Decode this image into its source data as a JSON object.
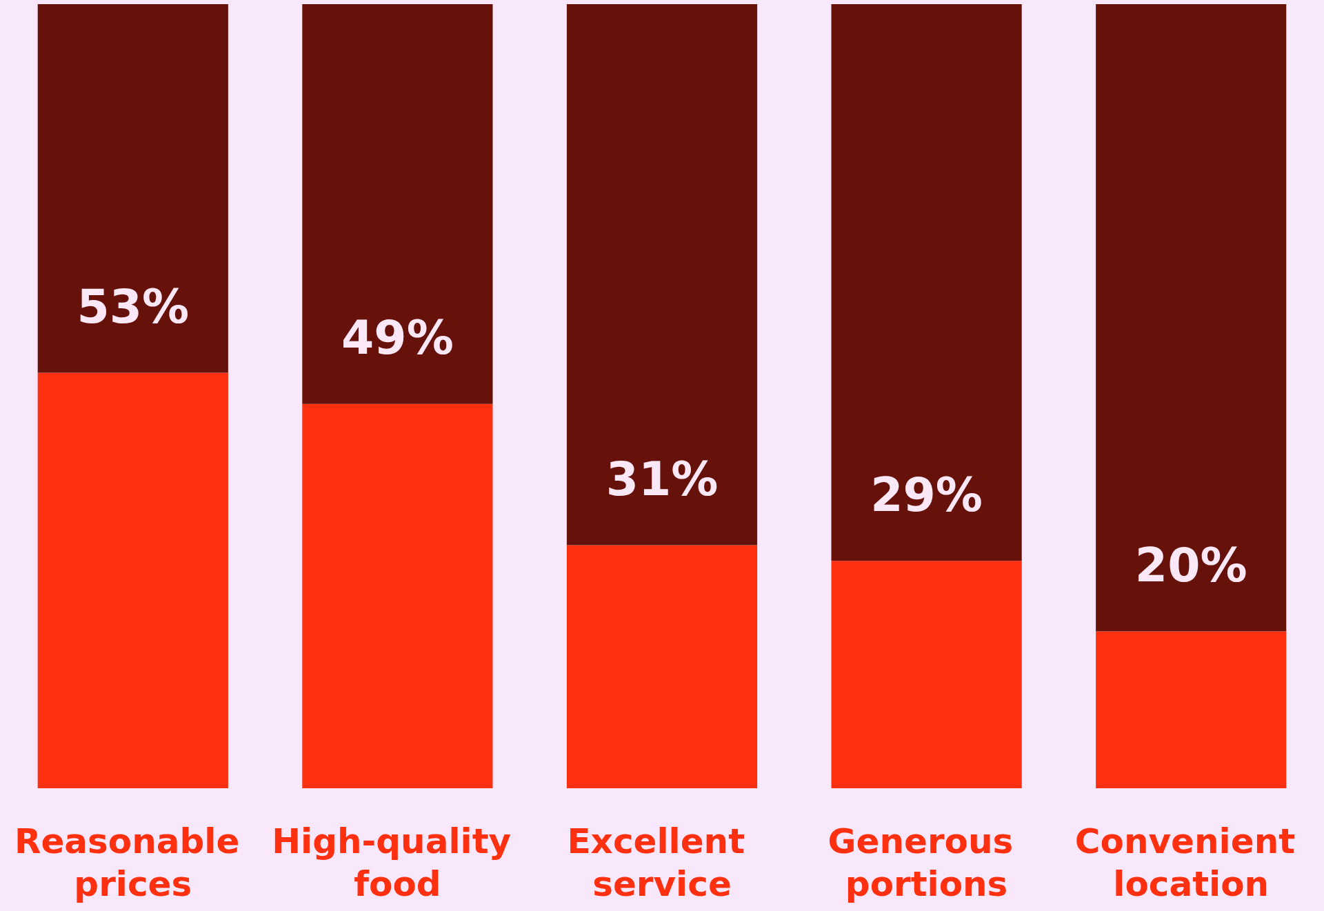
{
  "chart_data": {
    "type": "bar",
    "stacked": true,
    "categories": [
      "Reasonable prices",
      "High-quality food",
      "Excellent service",
      "Generous portions",
      "Convenient location"
    ],
    "ylim": [
      0,
      100
    ],
    "tick_labels": "x",
    "series": [
      {
        "color": "#ff3010",
        "values": [
          53,
          49,
          31,
          29,
          20
        ],
        "value_labels": [
          "53%",
          "49%",
          "31%",
          "29%",
          "20%"
        ]
      },
      {
        "color": "#66120a",
        "values": [
          47,
          51,
          69,
          71,
          80
        ]
      }
    ]
  }
}
